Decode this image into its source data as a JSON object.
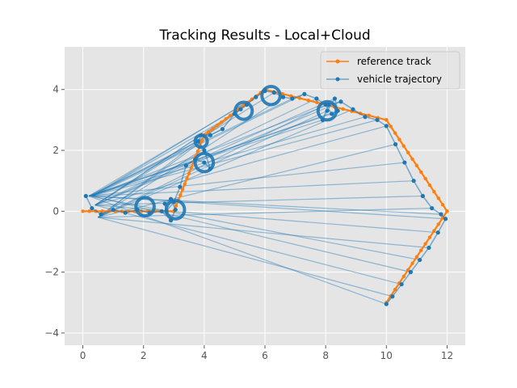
{
  "chart_data": {
    "type": "line",
    "title": "Tracking Results - Local+Cloud",
    "xlabel": "",
    "ylabel": "",
    "xlim": [
      -0.6,
      12.6
    ],
    "ylim": [
      -4.4,
      5.4
    ],
    "xticks": [
      0,
      2,
      4,
      6,
      8,
      10,
      12
    ],
    "yticks": [
      -4,
      -2,
      0,
      2,
      4
    ],
    "xtick_labels": [
      "0",
      "2",
      "4",
      "6",
      "8",
      "10",
      "12"
    ],
    "ytick_labels": [
      "−4",
      "−2",
      "0",
      "2",
      "4"
    ],
    "grid": true,
    "legend_position": "top-right",
    "series": [
      {
        "name": "reference track",
        "color": "#ff7f0e",
        "x": [
          0,
          3,
          4,
          6,
          10,
          12,
          10
        ],
        "y": [
          0,
          0,
          2.5,
          4,
          3,
          0,
          -3
        ]
      },
      {
        "name": "vehicle trajectory",
        "color": "#1f77b4",
        "x": [
          0.1,
          0.3,
          0.6,
          1.0,
          1.4,
          1.8,
          2.2,
          2.6,
          2.9,
          3.05,
          2.9,
          2.7,
          2.75,
          3.0,
          3.2,
          3.4,
          3.7,
          4.0,
          4.2,
          4.0,
          3.8,
          3.9,
          4.2,
          4.6,
          5.0,
          5.2,
          5.4,
          5.7,
          6.0,
          6.3,
          6.6,
          6.9,
          7.3,
          7.7,
          8.0,
          8.2,
          8.4,
          8.3,
          8.05,
          7.9,
          8.1,
          8.5,
          8.9,
          9.3,
          9.7,
          10.0,
          10.3,
          10.6,
          10.9,
          11.2,
          11.5,
          11.8,
          11.95,
          11.7,
          11.4,
          11.1,
          10.8,
          10.5,
          10.2,
          10.0
        ],
        "y": [
          0.5,
          0.1,
          -0.1,
          0.05,
          -0.05,
          0.05,
          -0.05,
          0.0,
          -0.3,
          0.05,
          0.4,
          0.25,
          0.0,
          0.3,
          0.8,
          1.5,
          1.7,
          1.6,
          1.4,
          2.0,
          2.3,
          2.5,
          2.5,
          2.7,
          3.2,
          3.35,
          3.5,
          3.75,
          3.95,
          3.9,
          3.75,
          3.7,
          3.85,
          3.7,
          3.5,
          3.2,
          3.3,
          3.7,
          3.3,
          3.0,
          3.5,
          3.6,
          3.35,
          3.1,
          3.0,
          2.8,
          2.2,
          1.6,
          1.0,
          0.5,
          0.1,
          -0.1,
          -0.25,
          -0.7,
          -1.2,
          -1.6,
          -2.0,
          -2.4,
          -2.8,
          -3.05
        ]
      }
    ]
  }
}
